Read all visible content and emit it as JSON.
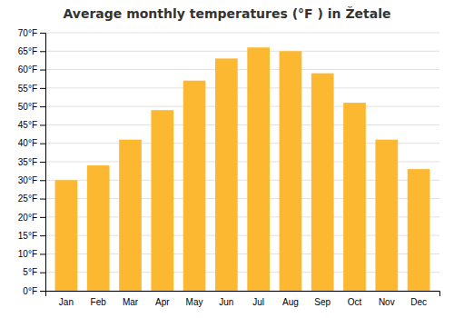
{
  "chart_data": {
    "type": "bar",
    "title": "Average monthly temperatures (°F ) in Žetale",
    "categories": [
      "Jan",
      "Feb",
      "Mar",
      "Apr",
      "May",
      "Jun",
      "Jul",
      "Aug",
      "Sep",
      "Oct",
      "Nov",
      "Dec"
    ],
    "values": [
      30,
      34,
      41,
      49,
      57,
      63,
      66,
      65,
      59,
      51,
      41,
      33
    ],
    "color": "#FDB831",
    "ylim": [
      0,
      70
    ],
    "yticks": [
      {
        "value": 0,
        "label": "0°F"
      },
      {
        "value": 5,
        "label": "5°F"
      },
      {
        "value": 10,
        "label": "10°F"
      },
      {
        "value": 15,
        "label": "15°F"
      },
      {
        "value": 20,
        "label": "20°F"
      },
      {
        "value": 25,
        "label": "25°F"
      },
      {
        "value": 30,
        "label": "30°F"
      },
      {
        "value": 35,
        "label": "35°F"
      },
      {
        "value": 40,
        "label": "40°F"
      },
      {
        "value": 45,
        "label": "45°F"
      },
      {
        "value": 50,
        "label": "50°F"
      },
      {
        "value": 55,
        "label": "55°F"
      },
      {
        "value": 60,
        "label": "60°F"
      },
      {
        "value": 65,
        "label": "65°F"
      },
      {
        "value": 70,
        "label": "70°F"
      }
    ],
    "grid": true
  }
}
